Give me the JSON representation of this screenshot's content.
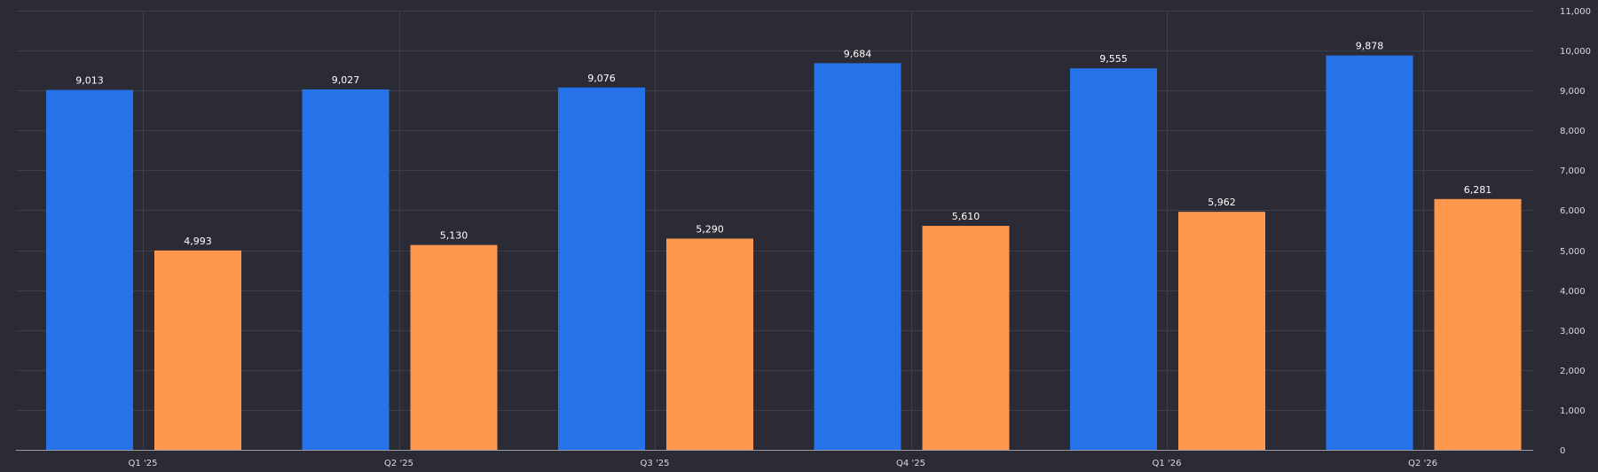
{
  "chart_data": {
    "type": "bar",
    "categories": [
      "Q1 '25",
      "Q2 '25",
      "Q3 '25",
      "Q4 '25",
      "Q1 '26",
      "Q2 '26"
    ],
    "series": [
      {
        "color": "#2672e8",
        "values": [
          9013,
          9027,
          9076,
          9684,
          9555,
          9878
        ]
      },
      {
        "color": "#ff974d",
        "values": [
          4993,
          5130,
          5290,
          5610,
          5962,
          6281
        ]
      }
    ],
    "value_labels": {
      "series_0": [
        "9,013",
        "9,027",
        "9,076",
        "9,684",
        "9,555",
        "9,878"
      ],
      "series_1": [
        "4,993",
        "5,130",
        "5,290",
        "5,610",
        "5,962",
        "6,281"
      ]
    },
    "y_axis": {
      "position": "right",
      "min": 0,
      "max": 11000,
      "ticks": [
        0,
        1000,
        2000,
        3000,
        4000,
        5000,
        6000,
        7000,
        8000,
        9000,
        10000,
        11000
      ],
      "tick_labels": [
        "0",
        "1,000",
        "2,000",
        "3,000",
        "4,000",
        "5,000",
        "6,000",
        "7,000",
        "8,000",
        "9,000",
        "10,000",
        "11,000"
      ]
    },
    "grid": true,
    "legend": "none",
    "background": "#2a2b34",
    "title": "",
    "xlabel": "",
    "ylabel": ""
  }
}
